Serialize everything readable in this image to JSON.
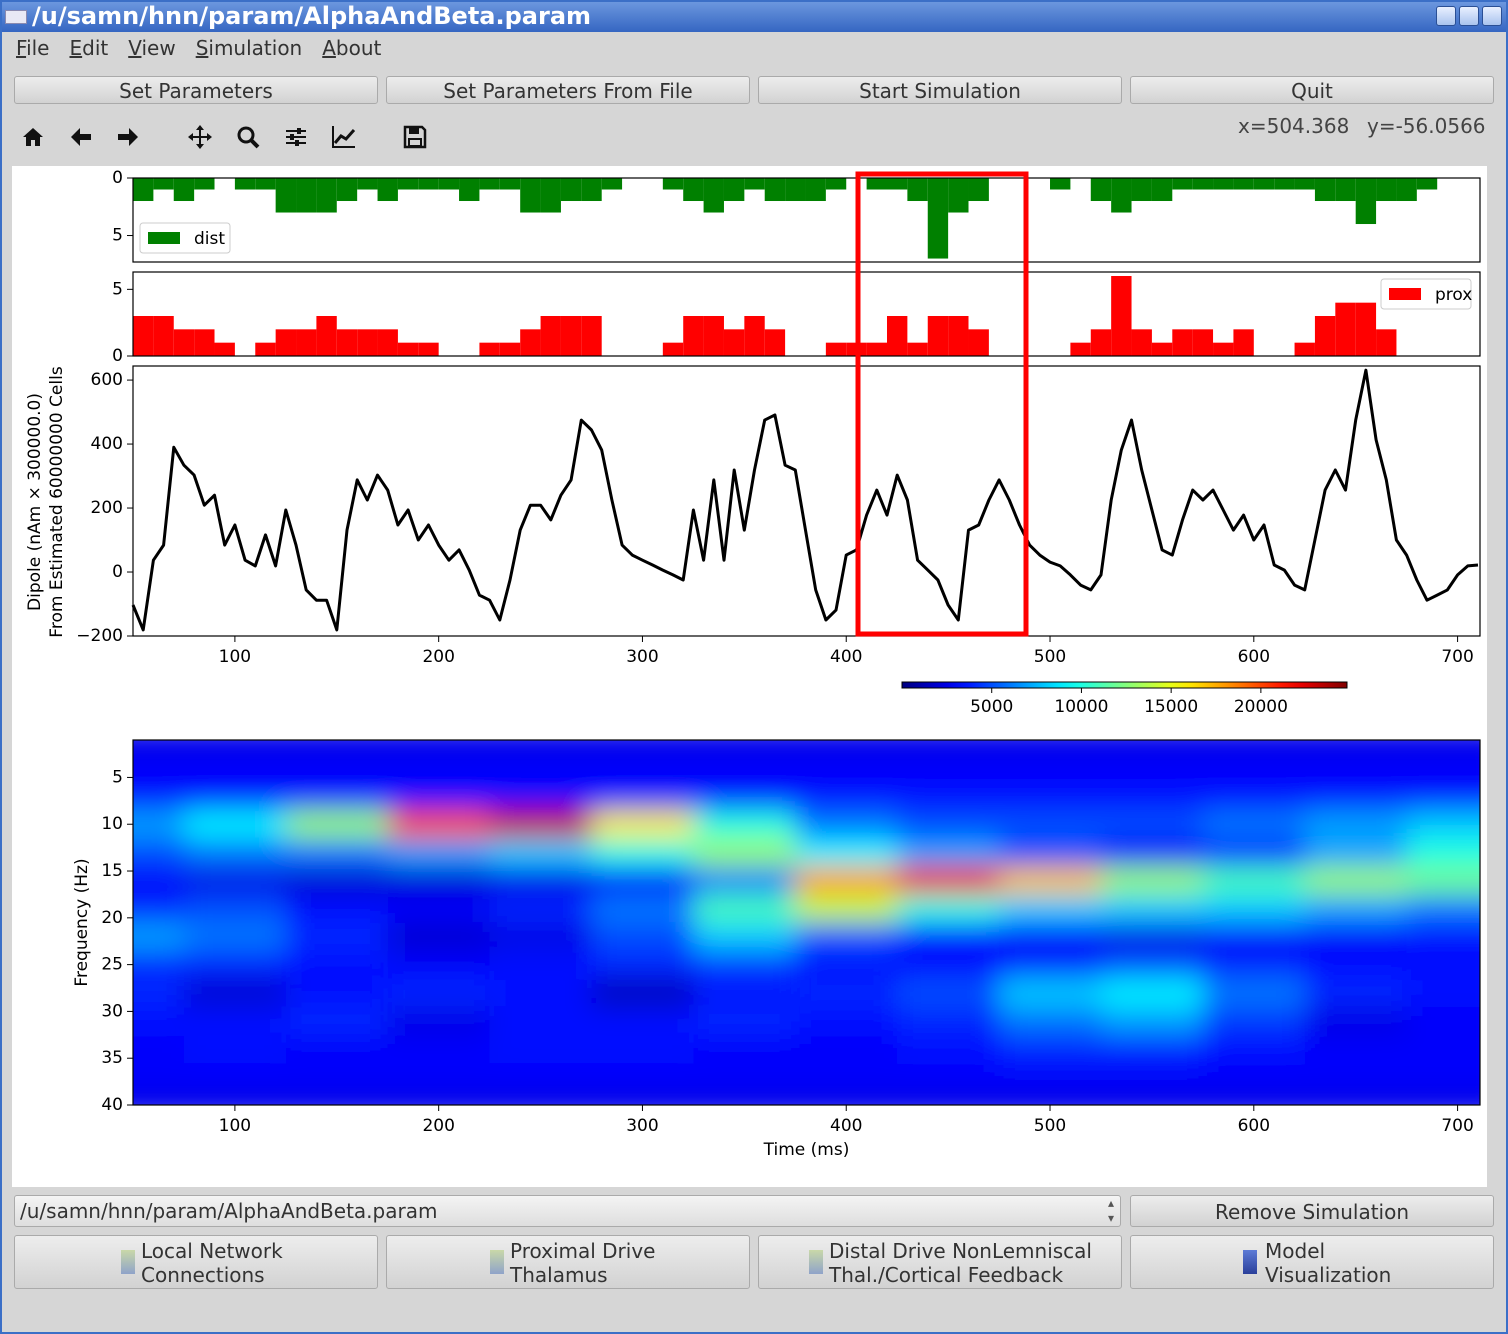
{
  "window": {
    "title": "/u/samn/hnn/param/AlphaAndBeta.param"
  },
  "menu": [
    "File",
    "Edit",
    "View",
    "Simulation",
    "About"
  ],
  "buttons": [
    "Set Parameters",
    "Set Parameters From File",
    "Start Simulation",
    "Quit"
  ],
  "cursor": {
    "x": "x=504.368",
    "y": "y=-56.0566"
  },
  "chart_data": [
    {
      "type": "histogram",
      "bins": [
        50,
        60,
        70,
        80,
        90,
        100,
        110,
        120,
        130,
        140,
        150,
        160,
        170,
        180,
        190,
        200,
        210,
        220,
        230,
        240,
        250,
        260,
        270,
        280,
        290,
        300,
        310,
        320,
        330,
        340,
        350,
        360,
        370,
        380,
        390,
        400,
        410,
        420,
        430,
        440,
        450,
        460,
        470,
        480,
        490,
        500,
        510,
        520,
        530,
        540,
        550,
        560,
        570,
        580,
        590,
        600,
        610,
        620,
        630,
        640,
        650,
        660,
        670,
        680,
        690,
        700,
        710
      ],
      "series": [
        {
          "name": "dist",
          "color": "#008000",
          "values": [
            2,
            1,
            2,
            1,
            0,
            1,
            1,
            3,
            3,
            3,
            2,
            1,
            2,
            1,
            1,
            1,
            2,
            1,
            1,
            3,
            3,
            2,
            2,
            1,
            0,
            0,
            1,
            2,
            3,
            2,
            1,
            2,
            2,
            2,
            1,
            0,
            1,
            1,
            2,
            7,
            3,
            2,
            0,
            0,
            0,
            1,
            0,
            2,
            3,
            2,
            2,
            1,
            1,
            1,
            1,
            1,
            1,
            1,
            2,
            2,
            4,
            2,
            2,
            1,
            0,
            0
          ]
        }
      ],
      "xlim": [
        50,
        711
      ],
      "ylim": [
        7.3,
        0
      ],
      "yticks": [
        0,
        5
      ],
      "legend": "lower left"
    },
    {
      "type": "histogram",
      "bins": [
        50,
        60,
        70,
        80,
        90,
        100,
        110,
        120,
        130,
        140,
        150,
        160,
        170,
        180,
        190,
        200,
        210,
        220,
        230,
        240,
        250,
        260,
        270,
        280,
        290,
        300,
        310,
        320,
        330,
        340,
        350,
        360,
        370,
        380,
        390,
        400,
        410,
        420,
        430,
        440,
        450,
        460,
        470,
        480,
        490,
        500,
        510,
        520,
        530,
        540,
        550,
        560,
        570,
        580,
        590,
        600,
        610,
        620,
        630,
        640,
        650,
        660,
        670,
        680,
        690,
        700,
        710
      ],
      "series": [
        {
          "name": "prox",
          "color": "#ff0000",
          "values": [
            3,
            3,
            2,
            2,
            1,
            0,
            1,
            2,
            2,
            3,
            2,
            2,
            2,
            1,
            1,
            0,
            0,
            1,
            1,
            2,
            3,
            3,
            3,
            0,
            0,
            0,
            1,
            3,
            3,
            2,
            3,
            2,
            0,
            0,
            1,
            1,
            1,
            3,
            1,
            3,
            3,
            2,
            0,
            0,
            0,
            0,
            1,
            2,
            6,
            2,
            1,
            2,
            2,
            1,
            2,
            0,
            0,
            1,
            3,
            4,
            4,
            2,
            0,
            0,
            0,
            0
          ]
        }
      ],
      "xlim": [
        50,
        711
      ],
      "ylim": [
        0,
        6.3
      ],
      "yticks": [
        0,
        5
      ],
      "legend": "upper right"
    },
    {
      "type": "line",
      "y_label": [
        "Dipole (nAm × 300000.0)",
        "From Estimated 60000000 Cells"
      ],
      "x": [
        50,
        55,
        60,
        65,
        70,
        75,
        80,
        85,
        90,
        95,
        100,
        105,
        110,
        115,
        120,
        125,
        130,
        135,
        140,
        145,
        150,
        155,
        160,
        165,
        170,
        175,
        180,
        185,
        190,
        195,
        200,
        205,
        210,
        215,
        220,
        225,
        230,
        235,
        240,
        245,
        250,
        255,
        260,
        265,
        270,
        275,
        280,
        285,
        290,
        295,
        300,
        305,
        310,
        315,
        320,
        325,
        330,
        335,
        340,
        345,
        350,
        355,
        360,
        365,
        370,
        375,
        380,
        385,
        390,
        395,
        400,
        405,
        410,
        415,
        420,
        425,
        430,
        435,
        440,
        445,
        450,
        455,
        460,
        465,
        470,
        475,
        480,
        485,
        490,
        495,
        500,
        505,
        510,
        515,
        520,
        525,
        530,
        535,
        540,
        545,
        550,
        555,
        560,
        565,
        570,
        575,
        580,
        585,
        590,
        595,
        600,
        605,
        610,
        615,
        620,
        625,
        630,
        635,
        640,
        645,
        650,
        655,
        660,
        665,
        670,
        675,
        680,
        685,
        690,
        695,
        700,
        705,
        710
      ],
      "series": [
        {
          "color": "#000000",
          "values": [
            -103,
            -181,
            37,
            84,
            390,
            334,
            303,
            209,
            240,
            84,
            147,
            37,
            19,
            116,
            19,
            194,
            84,
            -56,
            -88,
            -88,
            -181,
            131,
            288,
            225,
            303,
            256,
            147,
            194,
            100,
            147,
            84,
            37,
            69,
            6,
            -72,
            -88,
            -150,
            -25,
            131,
            209,
            209,
            163,
            240,
            288,
            475,
            444,
            381,
            225,
            84,
            53,
            37,
            22,
            6,
            -9,
            -25,
            194,
            37,
            288,
            37,
            319,
            131,
            319,
            475,
            491,
            334,
            319,
            131,
            -56,
            -150,
            -119,
            53,
            69,
            178,
            256,
            178,
            303,
            225,
            37,
            6,
            -25,
            -103,
            -150,
            131,
            147,
            225,
            288,
            225,
            147,
            84,
            53,
            31,
            19,
            -9,
            -41,
            -56,
            -9,
            225,
            381,
            475,
            319,
            194,
            69,
            53,
            163,
            256,
            225,
            256,
            194,
            131,
            178,
            100,
            147,
            22,
            6,
            -41,
            -56,
            100,
            256,
            319,
            256,
            475,
            631,
            413,
            288,
            100,
            53,
            -25,
            -88,
            -72,
            -56,
            -9,
            19,
            22
          ]
        }
      ],
      "xlim": [
        50,
        711
      ],
      "ylim": [
        -200,
        644
      ],
      "xticks": [
        100,
        200,
        300,
        400,
        500,
        600,
        700
      ],
      "yticks": [
        {
          "value": -200,
          "label": "−200"
        },
        0,
        200,
        400,
        600
      ]
    },
    {
      "type": "heatmap",
      "colormap": "jet",
      "x_label": "Time (ms)",
      "y_label": "Frequency (Hz)",
      "x": [
        50,
        100,
        150,
        200,
        250,
        300,
        350,
        400,
        450,
        500,
        550,
        600,
        650,
        700
      ],
      "y": [
        1,
        4,
        7,
        10,
        13,
        16,
        19,
        22,
        25,
        28,
        31,
        34,
        37,
        40
      ],
      "z": [
        [
          2500,
          2500,
          2500,
          2500,
          2500,
          2500,
          2500,
          2500,
          2500,
          2500,
          2500,
          2500,
          2500,
          2500
        ],
        [
          3000,
          3000,
          3000,
          3000,
          3000,
          3000,
          3000,
          3000,
          3000,
          3000,
          3000,
          3000,
          3000,
          3000
        ],
        [
          3500,
          3500,
          3500,
          3500,
          3500,
          3500,
          3500,
          3500,
          3500,
          3500,
          3500,
          3500,
          3500,
          3500
        ],
        [
          7000,
          9000,
          13000,
          20000,
          23000,
          16000,
          10000,
          6000,
          5000,
          5000,
          5000,
          6000,
          7000,
          8000
        ],
        [
          5000,
          6000,
          6000,
          7000,
          8000,
          10000,
          13000,
          9000,
          7000,
          5000,
          3000,
          4000,
          7000,
          10000
        ],
        [
          3000,
          2500,
          2000,
          2000,
          2500,
          3000,
          6000,
          18000,
          22000,
          17000,
          13000,
          11000,
          13000,
          12000
        ],
        [
          4000,
          5000,
          3500,
          3000,
          4000,
          6000,
          11000,
          14000,
          10000,
          8000,
          8000,
          8000,
          7000,
          6000
        ],
        [
          7000,
          6000,
          4000,
          2000,
          2500,
          5000,
          8000,
          5000,
          3500,
          3000,
          2500,
          3000,
          3000,
          3500
        ],
        [
          4000,
          4000,
          3500,
          3000,
          3500,
          4000,
          4500,
          3500,
          3500,
          4000,
          5000,
          4000,
          3500,
          3500
        ],
        [
          4000,
          2000,
          3500,
          4000,
          3500,
          1500,
          3500,
          4000,
          5000,
          8000,
          9000,
          6000,
          4000,
          3500
        ],
        [
          3500,
          3500,
          4000,
          2500,
          3500,
          3500,
          4000,
          3500,
          4000,
          6000,
          7000,
          4500,
          2500,
          3000
        ],
        [
          3000,
          3500,
          3000,
          3000,
          3500,
          3500,
          3000,
          3000,
          3500,
          4000,
          4000,
          3500,
          3000,
          3000
        ],
        [
          3000,
          3000,
          3000,
          3000,
          3000,
          3000,
          3000,
          3000,
          3000,
          3000,
          3000,
          3000,
          3000,
          3000
        ],
        [
          2500,
          2500,
          2500,
          2500,
          2500,
          2500,
          2500,
          2500,
          2500,
          2500,
          2500,
          2500,
          2500,
          2500
        ]
      ],
      "xlim": [
        50,
        711
      ],
      "ylim": [
        40,
        1
      ],
      "xticks": [
        100,
        200,
        300,
        400,
        500,
        600,
        700
      ],
      "yticks": [
        5,
        10,
        15,
        20,
        25,
        30,
        35,
        40
      ],
      "colorbar": {
        "lim": [
          0,
          24800
        ],
        "ticks": [
          5000,
          10000,
          15000,
          20000
        ]
      }
    }
  ],
  "footer": {
    "file_select": "/u/samn/hnn/param/AlphaAndBeta.param",
    "remove_button": "Remove Simulation",
    "panels": [
      [
        "Local Network",
        "Connections"
      ],
      [
        "Proximal Drive",
        "Thalamus"
      ],
      [
        "Distal Drive NonLemniscal",
        "Thal./Cortical Feedback"
      ],
      [
        "Model",
        "Visualization"
      ]
    ]
  }
}
